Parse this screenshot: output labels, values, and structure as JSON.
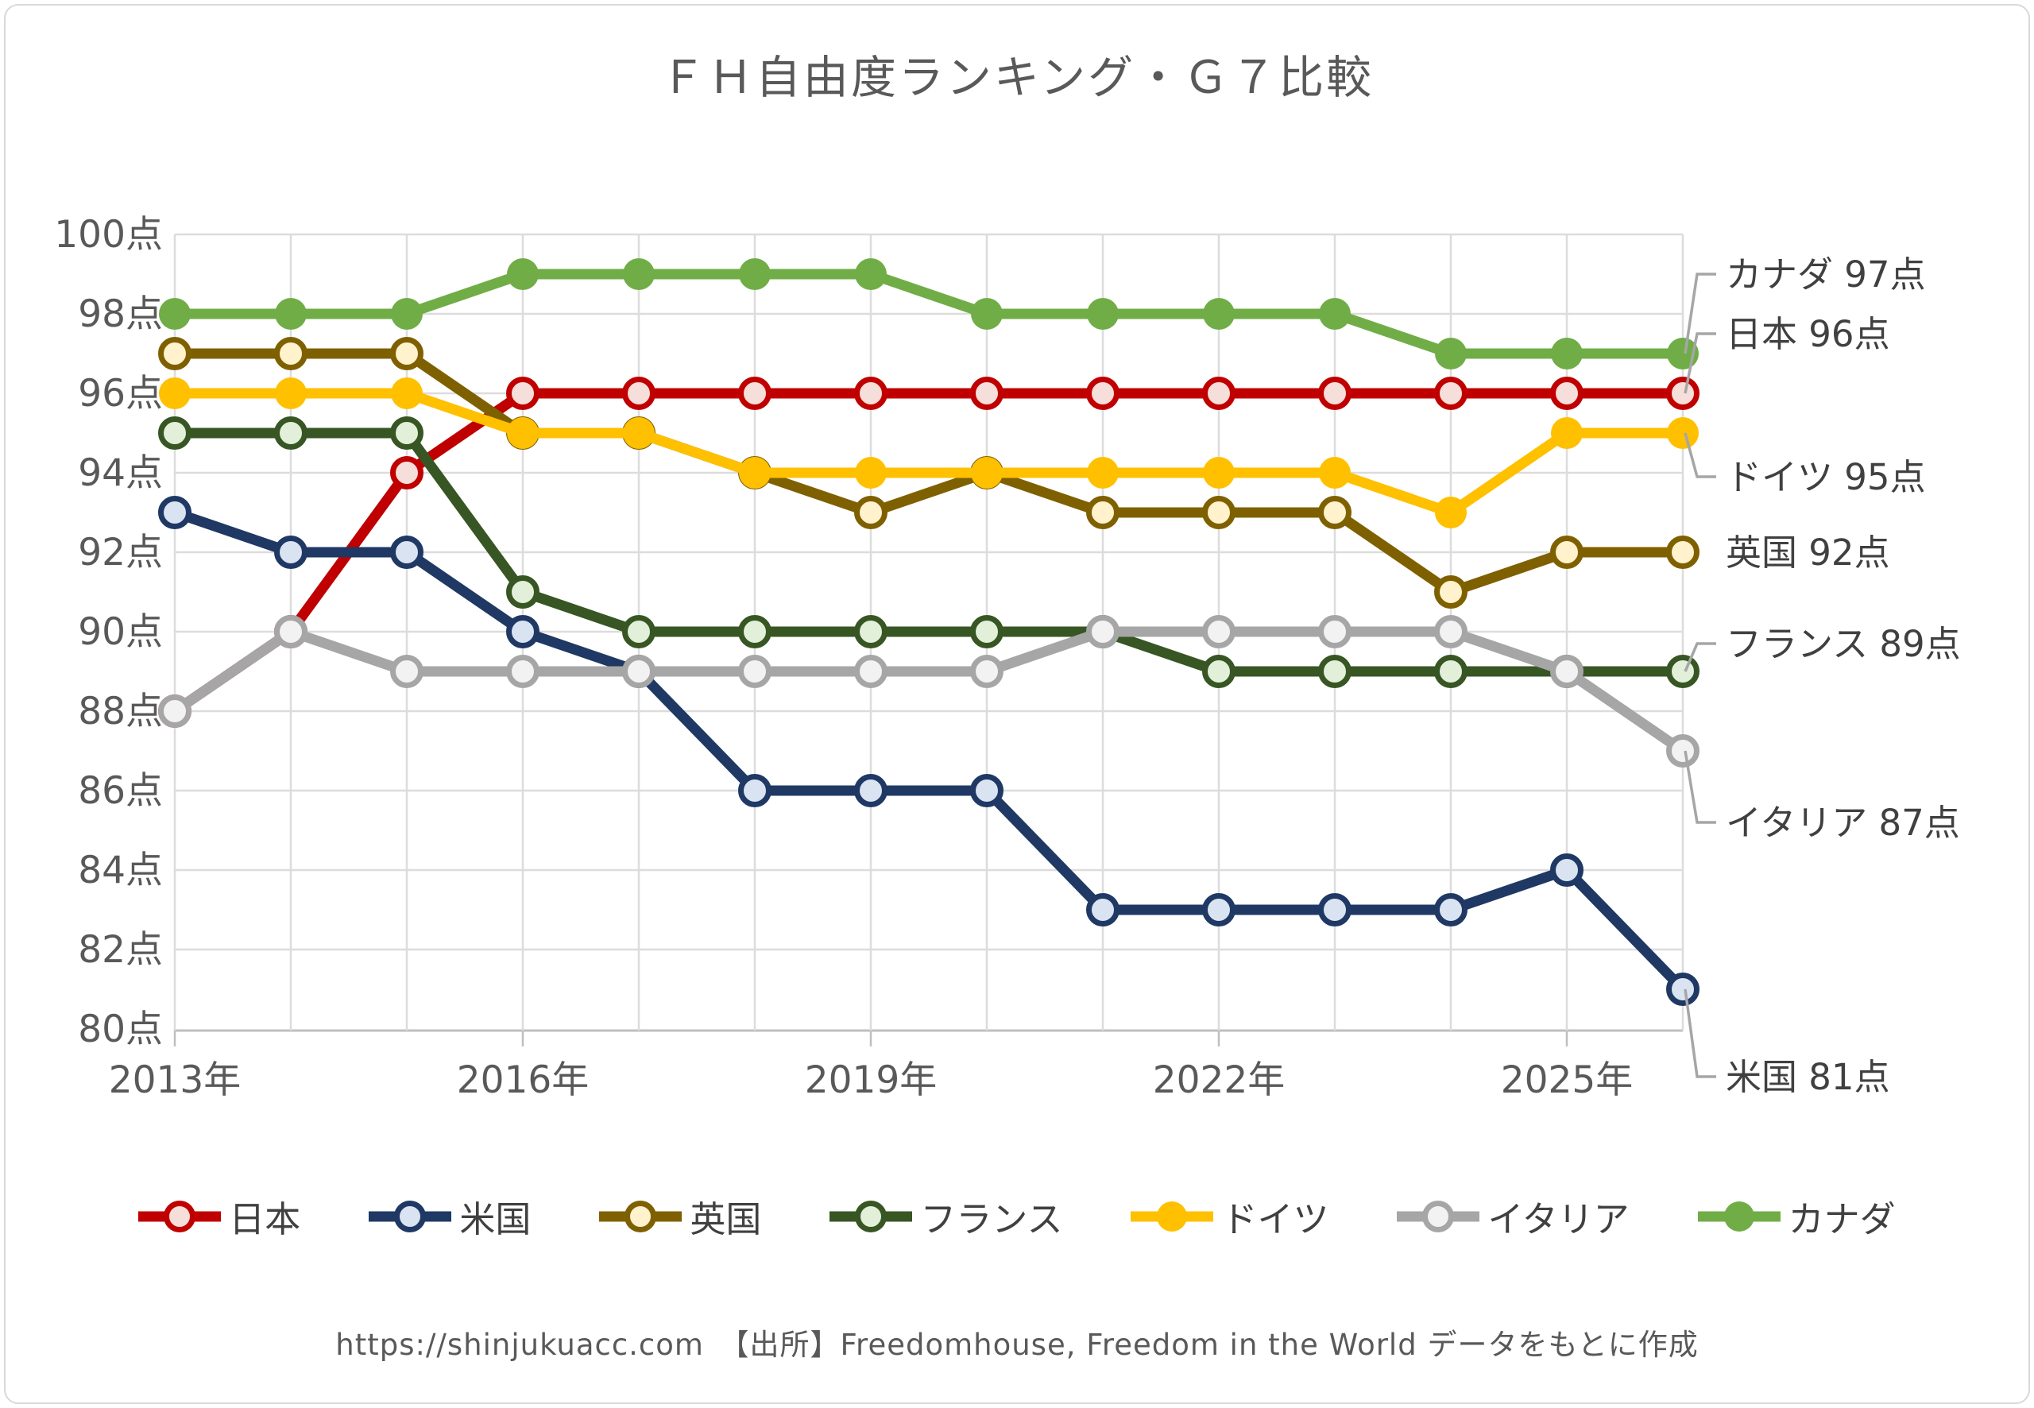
{
  "chart_data": {
    "type": "line",
    "title": "ＦＨ自由度ランキング・Ｇ７比較",
    "x_years": [
      2013,
      2014,
      2015,
      2016,
      2017,
      2018,
      2019,
      2020,
      2021,
      2022,
      2023,
      2024,
      2025,
      2026
    ],
    "x_tick_labels": [
      {
        "year": 2013,
        "label": "2013年"
      },
      {
        "year": 2016,
        "label": "2016年"
      },
      {
        "year": 2019,
        "label": "2019年"
      },
      {
        "year": 2022,
        "label": "2022年"
      },
      {
        "year": 2025,
        "label": "2025年"
      }
    ],
    "y_axis": {
      "min": 80,
      "max": 100,
      "step": 2,
      "unit": "点",
      "tick_labels": [
        "100点",
        "98点",
        "96点",
        "94点",
        "92点",
        "90点",
        "88点",
        "86点",
        "84点",
        "82点",
        "80点"
      ]
    },
    "grid": true,
    "legend_position": "bottom",
    "series": [
      {
        "key": "japan",
        "name": "日本",
        "color": "#C00000",
        "marker_fill": "#F6DEDA",
        "marker_style": "ring",
        "values": [
          88,
          90,
          94,
          96,
          96,
          96,
          96,
          96,
          96,
          96,
          96,
          96,
          96,
          96
        ]
      },
      {
        "key": "usa",
        "name": "米国",
        "color": "#1F3864",
        "marker_fill": "#DAE3F1",
        "marker_style": "ring",
        "values": [
          93,
          92,
          92,
          90,
          89,
          86,
          86,
          86,
          83,
          83,
          83,
          83,
          84,
          81
        ]
      },
      {
        "key": "uk",
        "name": "英国",
        "color": "#7F6000",
        "marker_fill": "#FFF2CC",
        "marker_style": "ring",
        "values": [
          97,
          97,
          97,
          95,
          95,
          94,
          93,
          94,
          93,
          93,
          93,
          91,
          92,
          92
        ]
      },
      {
        "key": "france",
        "name": "フランス",
        "color": "#375623",
        "marker_fill": "#E2EFD9",
        "marker_style": "ring",
        "values": [
          95,
          95,
          95,
          91,
          90,
          90,
          90,
          90,
          90,
          89,
          89,
          89,
          89,
          89
        ]
      },
      {
        "key": "germany",
        "name": "ドイツ",
        "color": "#FFC000",
        "marker_fill": "#FFC000",
        "marker_style": "solid",
        "values": [
          96,
          96,
          96,
          95,
          95,
          94,
          94,
          94,
          94,
          94,
          94,
          93,
          95,
          95
        ]
      },
      {
        "key": "italy",
        "name": "イタリア",
        "color": "#A6A6A6",
        "marker_fill": "#F2F2F2",
        "marker_style": "ring",
        "values": [
          88,
          90,
          89,
          89,
          89,
          89,
          89,
          89,
          90,
          90,
          90,
          90,
          89,
          87
        ]
      },
      {
        "key": "canada",
        "name": "カナダ",
        "color": "#70AD47",
        "marker_fill": "#70AD47",
        "marker_style": "solid",
        "values": [
          98,
          98,
          98,
          99,
          99,
          99,
          99,
          98,
          98,
          98,
          98,
          97,
          97,
          97
        ]
      }
    ],
    "annotations": [
      {
        "key": "canada",
        "text": "カナダ 97点",
        "label_value": 99.0,
        "leader": true
      },
      {
        "key": "japan",
        "text": "日本 96点",
        "label_value": 97.5,
        "leader": true
      },
      {
        "key": "germany",
        "text": "ドイツ 95点",
        "label_value": 93.9,
        "leader": true
      },
      {
        "key": "uk",
        "text": "英国 92点",
        "label_value": 92.0,
        "leader": false
      },
      {
        "key": "france",
        "text": "フランス 89点",
        "label_value": 89.7,
        "leader": true
      },
      {
        "key": "italy",
        "text": "イタリア 87点",
        "label_value": 85.2,
        "leader": true
      },
      {
        "key": "usa",
        "text": "米国 81点",
        "label_value": 78.8,
        "leader": true
      }
    ],
    "source_note": "https://shinjukuacc.com　【出所】Freedomhouse, Freedom in the World データをもとに作成"
  }
}
